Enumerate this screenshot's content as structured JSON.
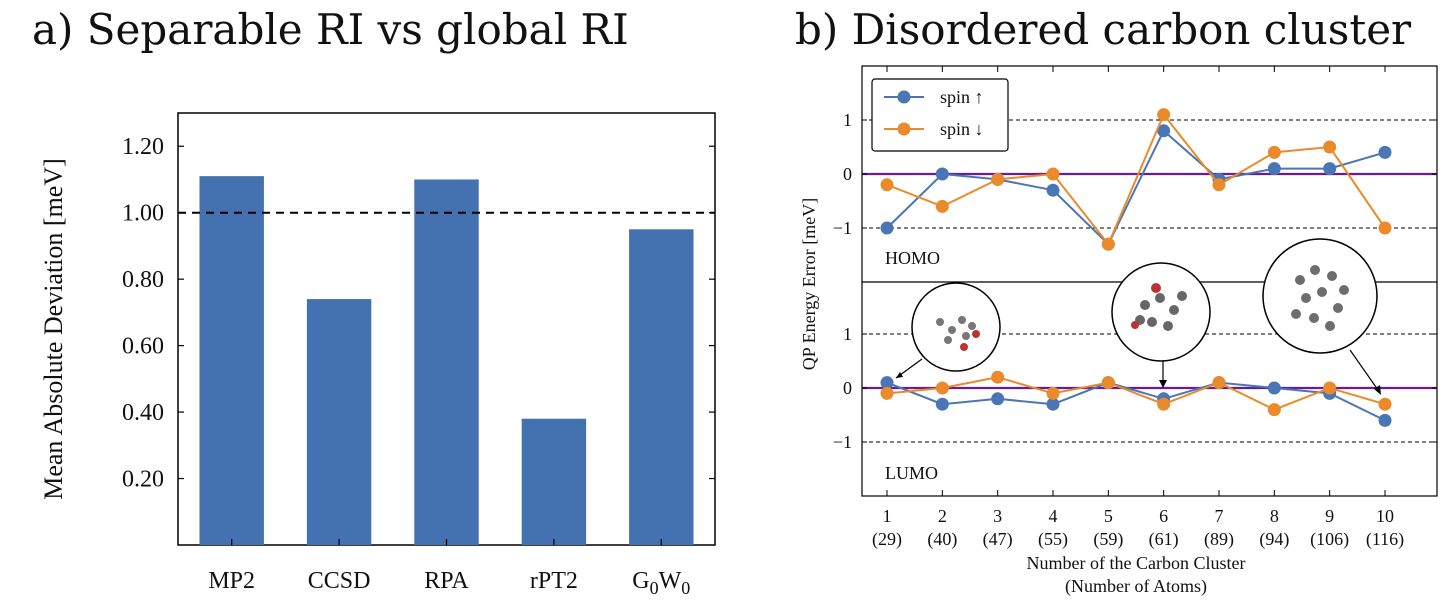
{
  "colors": {
    "bar": "#4472b0",
    "spin_up": "#4a76b5",
    "spin_down": "#ea8a2a",
    "zero_line": "#6a1b9a"
  },
  "chart_data": [
    {
      "type": "bar",
      "title": "a) Separable RI vs global RI",
      "xlabel": "",
      "ylabel": "Mean Absolute Deviation [meV]",
      "categories": [
        "MP2",
        "CCSD",
        "RPA",
        "rPT2",
        "G0W0"
      ],
      "values": [
        1.11,
        0.74,
        1.1,
        0.38,
        0.95
      ],
      "ylim": [
        0.0,
        1.3
      ],
      "ytick_labels": [
        "0.20",
        "0.40",
        "0.60",
        "0.80",
        "1.00",
        "1.20"
      ],
      "reference_line": 1.0,
      "grid": false
    },
    {
      "type": "line",
      "title": "b) Disordered carbon cluster",
      "xlabel": "Number of the Carbon Cluster",
      "xlabel2": "(Number of Atoms)",
      "ylabel": "QP Energy Error [meV]",
      "x": [
        1,
        2,
        3,
        4,
        5,
        6,
        7,
        8,
        9,
        10
      ],
      "x_tick_labels": [
        "1",
        "2",
        "3",
        "4",
        "5",
        "6",
        "7",
        "8",
        "9",
        "10"
      ],
      "x_tick_sublabels": [
        "(29)",
        "(40)",
        "(47)",
        "(55)",
        "(59)",
        "(61)",
        "(89)",
        "(94)",
        "(106)",
        "(116)"
      ],
      "legend": {
        "placement": "top-left",
        "entries": [
          "spin ↑",
          "spin ↓"
        ]
      },
      "panels": [
        {
          "name": "HOMO",
          "ylim": [
            -1.7,
            2.0
          ],
          "yticks": [
            "1",
            "0",
            "−1"
          ],
          "series": [
            {
              "name": "spin ↑",
              "values": [
                -1.0,
                0.0,
                -0.1,
                -0.3,
                -1.3,
                0.8,
                -0.1,
                0.1,
                0.1,
                0.4
              ]
            },
            {
              "name": "spin ↓",
              "values": [
                -0.2,
                -0.6,
                -0.1,
                0.0,
                -1.3,
                1.1,
                -0.2,
                0.4,
                0.5,
                -1.0
              ]
            }
          ]
        },
        {
          "name": "LUMO",
          "ylim": [
            -2.0,
            2.0
          ],
          "yticks": [
            "1",
            "0",
            "−1"
          ],
          "series": [
            {
              "name": "spin ↑",
              "values": [
                0.1,
                -0.3,
                -0.2,
                -0.3,
                0.1,
                -0.2,
                0.1,
                0.0,
                -0.1,
                -0.6
              ]
            },
            {
              "name": "spin ↓",
              "values": [
                -0.1,
                0.0,
                0.2,
                -0.1,
                0.1,
                -0.3,
                0.1,
                -0.4,
                0.0,
                -0.3
              ]
            }
          ]
        }
      ]
    }
  ]
}
